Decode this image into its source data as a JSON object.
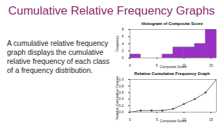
{
  "slide": {
    "title": "Cumulative Relative Frequency Graphs",
    "text": "A cumulative relative frequency graph displays the cumulative relative frequency of each class of a frequency distribution."
  },
  "chart_data": [
    {
      "type": "histogram",
      "title": "Histogram of Composite Score",
      "x_label": "Composite Score",
      "y_label": "Frequency",
      "bins": [
        0,
        2,
        4,
        6,
        8,
        10,
        12,
        14,
        16
      ],
      "values": [
        1,
        0,
        0,
        1,
        3,
        3,
        4,
        8
      ],
      "color": "#9b30c8",
      "xlim": [
        0,
        16
      ],
      "xticks": [
        0,
        5,
        10,
        15
      ],
      "ylim": [
        0,
        8
      ],
      "yticks": [
        0,
        2,
        4,
        6,
        8
      ],
      "grid": false
    },
    {
      "type": "line",
      "title": "Relative Cumulative Frequency Graph",
      "x_label": "Composite Score",
      "y_label": "Relative Cumulative Frequency",
      "x": [
        0,
        2,
        4,
        6,
        8,
        10,
        12,
        14,
        16
      ],
      "values": [
        0,
        0.05,
        0.05,
        0.05,
        0.1,
        0.25,
        0.4,
        0.6,
        1.0
      ],
      "color": "#333333",
      "marker": "circle",
      "xlim": [
        0,
        16
      ],
      "xticks": [
        0,
        5,
        10,
        15
      ],
      "ylim": [
        0,
        1
      ],
      "yticks": [
        {
          "value": 0,
          "label": "0.0"
        },
        {
          "value": 0.2,
          "label": "0.2"
        },
        {
          "value": 0.4,
          "label": "0.4"
        },
        {
          "value": 0.6,
          "label": "0.6"
        },
        {
          "value": 0.8,
          "label": "0.8"
        },
        {
          "value": 1,
          "label": "1.0"
        }
      ],
      "grid": false
    }
  ]
}
